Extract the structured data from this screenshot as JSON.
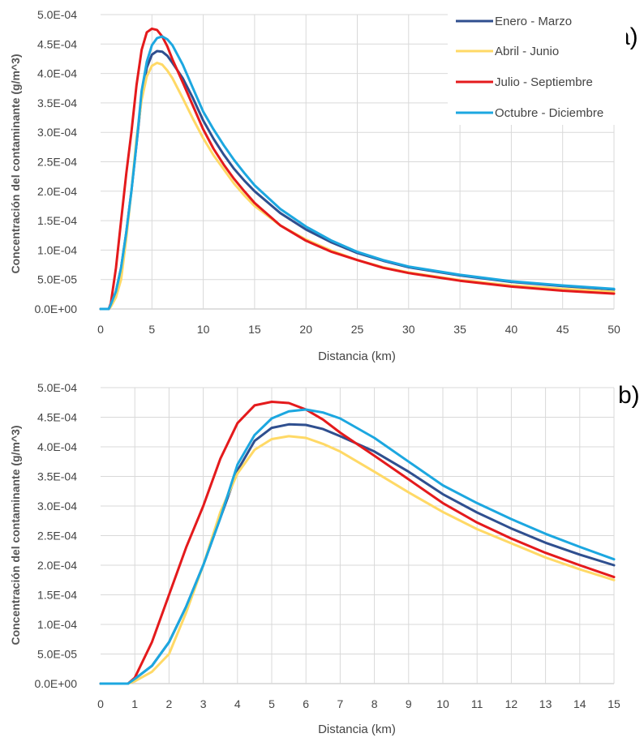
{
  "chart_data": [
    {
      "panel_label": "a)",
      "type": "line",
      "xlabel": "Distancia (km)",
      "ylabel": "Concentración del contaminante (g/m^3)",
      "xlim": [
        0,
        50
      ],
      "ylim": [
        0,
        0.0005
      ],
      "x_ticks": [
        0,
        5,
        10,
        15,
        20,
        25,
        30,
        35,
        40,
        45,
        50
      ],
      "y_ticks": [
        "0.0E+00",
        "5.0E-05",
        "1.0E-04",
        "1.5E-04",
        "2.0E-04",
        "2.5E-04",
        "3.0E-04",
        "3.5E-04",
        "4.0E-04",
        "4.5E-04",
        "5.0E-04"
      ],
      "y_tick_values": [
        0,
        5e-05,
        0.0001,
        0.00015,
        0.0002,
        0.00025,
        0.0003,
        0.00035,
        0.0004,
        0.00045,
        0.0005
      ],
      "grid": "vertical and horizontal",
      "legend_position": "top-right",
      "series": [
        {
          "name": "Enero - Marzo",
          "color": "#2f4f8f",
          "x": [
            0,
            0.8,
            1,
            1.5,
            2,
            2.5,
            3,
            3.5,
            4,
            4.5,
            5,
            5.5,
            6,
            6.5,
            7,
            8,
            9,
            10,
            11,
            12,
            13,
            14,
            15,
            17.5,
            20,
            22.5,
            25,
            27.5,
            30,
            35,
            40,
            45,
            50
          ],
          "y": [
            0,
            0,
            8e-06,
            3e-05,
            7e-05,
            0.00013,
            0.0002,
            0.00028,
            0.00036,
            0.00041,
            0.000432,
            0.000438,
            0.000437,
            0.00043,
            0.000418,
            0.000392,
            0.000358,
            0.00032,
            0.000289,
            0.000262,
            0.000238,
            0.000218,
            0.0002,
            0.000163,
            0.000135,
            0.000113,
            9.5e-05,
            8.2e-05,
            7.1e-05,
            5.7e-05,
            4.6e-05,
            3.9e-05,
            3.3e-05
          ]
        },
        {
          "name": "Abril - Junio",
          "color": "#ffd966",
          "x": [
            0,
            0.8,
            1,
            1.5,
            2,
            2.5,
            3,
            3.5,
            4,
            4.5,
            5,
            5.5,
            6,
            6.5,
            7,
            8,
            9,
            10,
            11,
            12,
            13,
            14,
            15,
            17.5,
            20,
            22.5,
            25,
            27.5,
            30,
            35,
            40,
            45,
            50
          ],
          "y": [
            0,
            0,
            4e-06,
            2e-05,
            5e-05,
            0.00012,
            0.0002,
            0.00029,
            0.000355,
            0.000395,
            0.000413,
            0.000418,
            0.000415,
            0.000405,
            0.000392,
            0.000358,
            0.000323,
            0.00029,
            0.000261,
            0.000237,
            0.000213,
            0.000193,
            0.000175,
            0.000142,
            0.000118,
            9.9e-05,
            8.3e-05,
            7.1e-05,
            6.2e-05,
            4.9e-05,
            4e-05,
            3.4e-05,
            2.9e-05
          ]
        },
        {
          "name": "Julio - Septiembre",
          "color": "#e41a1c",
          "x": [
            0,
            0.8,
            1,
            1.5,
            2,
            2.5,
            3,
            3.5,
            4,
            4.5,
            5,
            5.5,
            6,
            6.5,
            7,
            8,
            9,
            10,
            11,
            12,
            13,
            14,
            15,
            17.5,
            20,
            22.5,
            25,
            27.5,
            30,
            35,
            40,
            45,
            50
          ],
          "y": [
            0,
            0,
            1e-05,
            7e-05,
            0.00015,
            0.00023,
            0.0003,
            0.00038,
            0.00044,
            0.00047,
            0.000476,
            0.000474,
            0.000463,
            0.000446,
            0.000424,
            0.000385,
            0.000345,
            0.000305,
            0.000272,
            0.000245,
            0.000221,
            0.0002,
            0.00018,
            0.000142,
            0.000116,
            9.7e-05,
            8.3e-05,
            7e-05,
            6.1e-05,
            4.8e-05,
            3.8e-05,
            3.1e-05,
            2.6e-05
          ]
        },
        {
          "name": "Octubre - Diciembre",
          "color": "#1ca7e0",
          "x": [
            0,
            0.8,
            1,
            1.5,
            2,
            2.5,
            3,
            3.5,
            4,
            4.5,
            5,
            5.5,
            6,
            6.5,
            7,
            8,
            9,
            10,
            11,
            12,
            13,
            14,
            15,
            17.5,
            20,
            22.5,
            25,
            27.5,
            30,
            35,
            40,
            45,
            50
          ],
          "y": [
            0,
            0,
            8e-06,
            3e-05,
            7e-05,
            0.00013,
            0.0002,
            0.00028,
            0.00037,
            0.00042,
            0.000448,
            0.00046,
            0.000463,
            0.000458,
            0.000448,
            0.000415,
            0.000375,
            0.000335,
            0.000305,
            0.000278,
            0.000253,
            0.000231,
            0.00021,
            0.00017,
            0.00014,
            0.000116,
            9.7e-05,
            8.3e-05,
            7.2e-05,
            5.8e-05,
            4.7e-05,
            4e-05,
            3.4e-05
          ]
        }
      ]
    },
    {
      "panel_label": "b)",
      "type": "line",
      "xlabel": "Distancia (km)",
      "ylabel": "Concentración del contaminante (g/m^3)",
      "xlim": [
        0,
        15
      ],
      "ylim": [
        0,
        0.0005
      ],
      "x_ticks": [
        0,
        1,
        2,
        3,
        4,
        5,
        6,
        7,
        8,
        9,
        10,
        11,
        12,
        13,
        14,
        15
      ],
      "y_ticks": [
        "0.0E+00",
        "5.0E-05",
        "1.0E-04",
        "1.5E-04",
        "2.0E-04",
        "2.5E-04",
        "3.0E-04",
        "3.5E-04",
        "4.0E-04",
        "4.5E-04",
        "5.0E-04"
      ],
      "y_tick_values": [
        0,
        5e-05,
        0.0001,
        0.00015,
        0.0002,
        0.00025,
        0.0003,
        0.00035,
        0.0004,
        0.00045,
        0.0005
      ],
      "grid": "vertical and horizontal",
      "series": [
        {
          "name": "Enero - Marzo",
          "color": "#2f4f8f",
          "x": [
            0,
            0.8,
            1,
            1.5,
            2,
            2.5,
            3,
            3.5,
            4,
            4.5,
            5,
            5.5,
            6,
            6.5,
            7,
            8,
            9,
            10,
            11,
            12,
            13,
            14,
            15
          ],
          "y": [
            0,
            0,
            8e-06,
            3e-05,
            7e-05,
            0.00013,
            0.0002,
            0.00028,
            0.00036,
            0.00041,
            0.000432,
            0.000438,
            0.000437,
            0.00043,
            0.000418,
            0.000392,
            0.000358,
            0.00032,
            0.000289,
            0.000262,
            0.000238,
            0.000218,
            0.0002
          ]
        },
        {
          "name": "Abril - Junio",
          "color": "#ffd966",
          "x": [
            0,
            0.8,
            1,
            1.5,
            2,
            2.5,
            3,
            3.5,
            4,
            4.5,
            5,
            5.5,
            6,
            6.5,
            7,
            8,
            9,
            10,
            11,
            12,
            13,
            14,
            15
          ],
          "y": [
            0,
            0,
            4e-06,
            2e-05,
            5e-05,
            0.00012,
            0.0002,
            0.00029,
            0.000355,
            0.000395,
            0.000413,
            0.000418,
            0.000415,
            0.000405,
            0.000392,
            0.000358,
            0.000323,
            0.00029,
            0.000261,
            0.000237,
            0.000213,
            0.000193,
            0.000175
          ]
        },
        {
          "name": "Julio - Septiembre",
          "color": "#e41a1c",
          "x": [
            0,
            0.8,
            1,
            1.5,
            2,
            2.5,
            3,
            3.5,
            4,
            4.5,
            5,
            5.5,
            6,
            6.5,
            7,
            8,
            9,
            10,
            11,
            12,
            13,
            14,
            15
          ],
          "y": [
            0,
            0,
            1e-05,
            7e-05,
            0.00015,
            0.00023,
            0.0003,
            0.00038,
            0.00044,
            0.00047,
            0.000476,
            0.000474,
            0.000463,
            0.000446,
            0.000424,
            0.000385,
            0.000345,
            0.000305,
            0.000272,
            0.000245,
            0.000221,
            0.0002,
            0.00018
          ]
        },
        {
          "name": "Octubre - Diciembre",
          "color": "#1ca7e0",
          "x": [
            0,
            0.8,
            1,
            1.5,
            2,
            2.5,
            3,
            3.5,
            4,
            4.5,
            5,
            5.5,
            6,
            6.5,
            7,
            8,
            9,
            10,
            11,
            12,
            13,
            14,
            15
          ],
          "y": [
            0,
            0,
            8e-06,
            3e-05,
            7e-05,
            0.00013,
            0.0002,
            0.00028,
            0.00037,
            0.00042,
            0.000448,
            0.00046,
            0.000463,
            0.000458,
            0.000448,
            0.000415,
            0.000375,
            0.000335,
            0.000305,
            0.000278,
            0.000253,
            0.000231,
            0.00021
          ]
        }
      ]
    }
  ]
}
